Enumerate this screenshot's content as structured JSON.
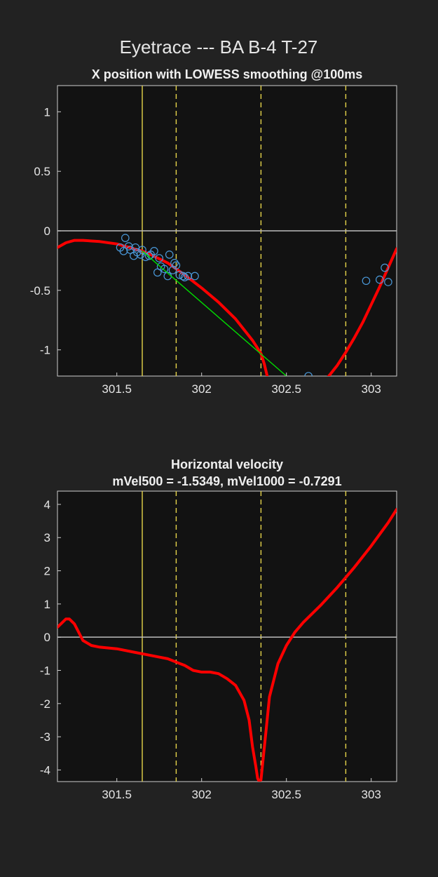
{
  "figure": {
    "title": "Eyetrace --- BA B-4 T-27",
    "colors": {
      "background": "#222222",
      "axes_background": "#121212",
      "smooth_line": "#ff0000",
      "raw_points": "#4a98d8",
      "fit_line": "#00dd00",
      "event_line": "#e6d44a",
      "zero_line": "#bdbdbd"
    }
  },
  "chart_data": [
    {
      "type": "line",
      "title": "X position with LOWESS smoothing @100ms",
      "xlabel": "",
      "ylabel": "",
      "xlim": [
        301.15,
        303.15
      ],
      "ylim": [
        -1.22,
        1.22
      ],
      "xticks": [
        301.5,
        302,
        302.5,
        303
      ],
      "xtick_labels": [
        "301.5",
        "302",
        "302.5",
        "303"
      ],
      "yticks": [
        1,
        0.5,
        0,
        -0.5,
        -1
      ],
      "ytick_labels": [
        "1",
        "0.5",
        "0",
        "-0.5",
        "-1"
      ],
      "zero_line": 0,
      "vlines": [
        {
          "x": 301.65,
          "style": "solid"
        },
        {
          "x": 301.85,
          "style": "dashed"
        },
        {
          "x": 302.35,
          "style": "dashed"
        },
        {
          "x": 302.85,
          "style": "dashed"
        }
      ],
      "series": [
        {
          "name": "LOWESS smoothed",
          "style": "line",
          "color": "#ff0000",
          "x": [
            301.15,
            301.2,
            301.25,
            301.3,
            301.4,
            301.5,
            301.6,
            301.65,
            301.7,
            301.8,
            301.85,
            301.9,
            302.0,
            302.1,
            302.2,
            302.3,
            302.35,
            302.37,
            302.4,
            302.6,
            302.7,
            302.75,
            302.8,
            302.85,
            302.9,
            302.95,
            303.0,
            303.05,
            303.1,
            303.15
          ],
          "y": [
            -0.14,
            -0.1,
            -0.08,
            -0.08,
            -0.09,
            -0.11,
            -0.15,
            -0.17,
            -0.2,
            -0.27,
            -0.32,
            -0.37,
            -0.48,
            -0.6,
            -0.74,
            -0.92,
            -1.03,
            -1.12,
            -1.3,
            -1.4,
            -1.3,
            -1.22,
            -1.13,
            -1.02,
            -0.9,
            -0.77,
            -0.62,
            -0.47,
            -0.31,
            -0.15
          ]
        },
        {
          "name": "raw samples",
          "style": "markers",
          "color": "#4a98d8",
          "x": [
            301.52,
            301.54,
            301.55,
            301.57,
            301.58,
            301.6,
            301.61,
            301.62,
            301.64,
            301.65,
            301.67,
            301.69,
            301.7,
            301.72,
            301.74,
            301.75,
            301.76,
            301.78,
            301.8,
            301.81,
            301.83,
            301.84,
            301.85,
            301.87,
            301.89,
            301.9,
            301.92,
            301.96,
            302.63,
            302.97,
            303.05,
            303.08,
            303.1
          ],
          "y": [
            -0.14,
            -0.17,
            -0.06,
            -0.13,
            -0.16,
            -0.21,
            -0.14,
            -0.18,
            -0.2,
            -0.16,
            -0.22,
            -0.21,
            -0.2,
            -0.17,
            -0.35,
            -0.23,
            -0.3,
            -0.32,
            -0.38,
            -0.2,
            -0.33,
            -0.27,
            -0.29,
            -0.37,
            -0.38,
            -0.39,
            -0.38,
            -0.38,
            -1.22,
            -0.42,
            -0.41,
            -0.31,
            -0.43
          ]
        },
        {
          "name": "linear fit",
          "style": "line",
          "color": "#00dd00",
          "x": [
            301.65,
            302.5
          ],
          "y": [
            -0.17,
            -1.22
          ]
        }
      ]
    },
    {
      "type": "line",
      "title": "Horizontal velocity",
      "subtitle": "mVel500 = -1.5349, mVel1000 = -0.7291",
      "xlabel": "",
      "ylabel": "",
      "xlim": [
        301.15,
        303.15
      ],
      "ylim": [
        -4.35,
        4.4
      ],
      "xticks": [
        301.5,
        302,
        302.5,
        303
      ],
      "xtick_labels": [
        "301.5",
        "302",
        "302.5",
        "303"
      ],
      "yticks": [
        4,
        3,
        2,
        1,
        0,
        -1,
        -2,
        -3,
        -4
      ],
      "ytick_labels": [
        "4",
        "3",
        "2",
        "1",
        "0",
        "-1",
        "-2",
        "-3",
        "-4"
      ],
      "zero_line": 0,
      "vlines": [
        {
          "x": 301.65,
          "style": "solid"
        },
        {
          "x": 301.85,
          "style": "dashed"
        },
        {
          "x": 302.35,
          "style": "dashed"
        },
        {
          "x": 302.85,
          "style": "dashed"
        }
      ],
      "series": [
        {
          "name": "velocity",
          "style": "line",
          "color": "#ff0000",
          "x": [
            301.15,
            301.2,
            301.22,
            301.25,
            301.28,
            301.3,
            301.35,
            301.4,
            301.5,
            301.6,
            301.7,
            301.75,
            301.8,
            301.85,
            301.9,
            301.95,
            302.0,
            302.05,
            302.1,
            302.15,
            302.2,
            302.25,
            302.28,
            302.3,
            302.32,
            302.33,
            302.34,
            302.35,
            302.36,
            302.38,
            302.4,
            302.45,
            302.5,
            302.55,
            302.6,
            302.7,
            302.8,
            302.9,
            303.0,
            303.1,
            303.15
          ],
          "y": [
            0.3,
            0.55,
            0.55,
            0.4,
            0.1,
            -0.1,
            -0.25,
            -0.3,
            -0.35,
            -0.45,
            -0.55,
            -0.6,
            -0.65,
            -0.75,
            -0.85,
            -1.0,
            -1.05,
            -1.05,
            -1.1,
            -1.25,
            -1.45,
            -1.9,
            -2.5,
            -3.3,
            -3.9,
            -4.25,
            -4.35,
            -4.3,
            -3.8,
            -2.8,
            -1.8,
            -0.8,
            -0.25,
            0.15,
            0.45,
            0.95,
            1.5,
            2.1,
            2.75,
            3.45,
            3.85
          ]
        }
      ]
    }
  ]
}
